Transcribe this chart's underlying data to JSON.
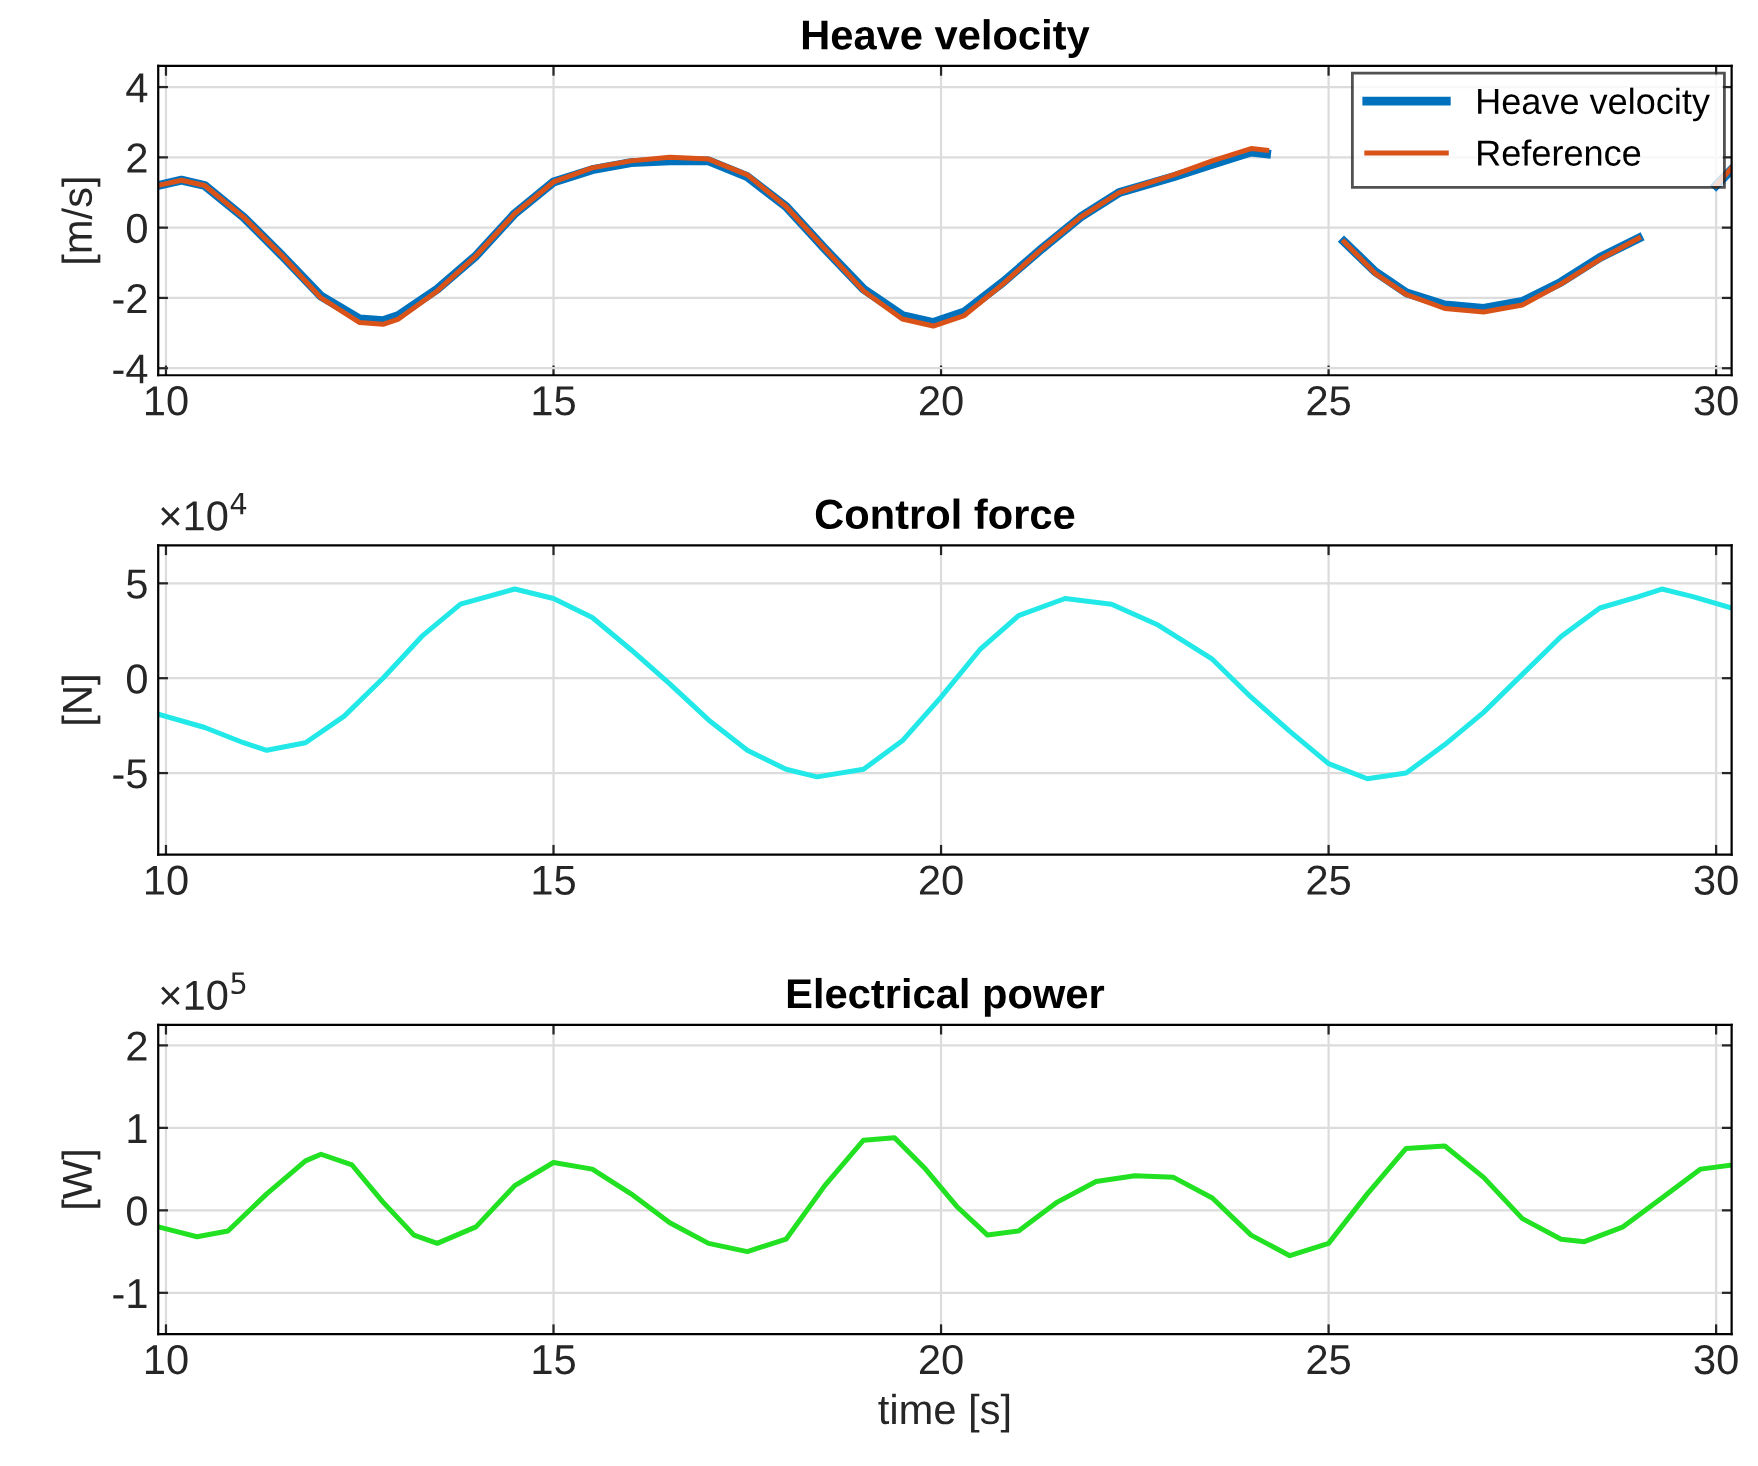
{
  "chart_data": [
    {
      "type": "line",
      "title": "Heave velocity",
      "ylabel": "[m/s]",
      "xlim": [
        9.9,
        30.2
      ],
      "ylim": [
        -4.2,
        4.6
      ],
      "xticks": [
        10,
        15,
        20,
        25,
        30
      ],
      "yticks": [
        -4,
        -2,
        0,
        2,
        4
      ],
      "grid": true,
      "legend": "top right",
      "series": [
        {
          "name": "Heave velocity",
          "color": "#0072bd",
          "x": [
            9.9,
            10.2,
            10.5,
            11,
            11.5,
            12,
            12.5,
            12.8,
            13,
            13.5,
            14,
            14.5,
            15,
            15.5,
            16,
            16.5,
            17,
            17.5,
            18,
            18.5,
            19,
            19.5,
            19.9,
            20.3,
            20.8,
            21.3,
            21.8,
            22.3,
            23,
            23.5,
            24,
            24.2,
            24.6,
            25.2,
            25.6,
            26,
            26.5,
            27,
            27.5,
            28,
            28.5,
            29,
            29.5,
            30,
            30.2
          ],
          "values": [
            1.2,
            1.35,
            1.2,
            0.3,
            -0.8,
            -1.95,
            -2.6,
            -2.65,
            -2.5,
            -1.75,
            -0.8,
            0.4,
            1.3,
            1.65,
            1.85,
            1.9,
            1.9,
            1.45,
            0.6,
            -0.6,
            -1.75,
            -2.5,
            -2.7,
            -2.4,
            -1.55,
            -0.6,
            0.3,
            1.0,
            1.45,
            1.8,
            2.15,
            2.1,
            null,
            -0.4,
            -1.25,
            -1.85,
            -2.2,
            -2.3,
            -2.1,
            -1.55,
            -0.85,
            -0.3,
            null,
            1.2,
            1.65
          ]
        },
        {
          "name": "Reference",
          "color": "#d95319",
          "x": [
            9.9,
            10.2,
            10.5,
            11,
            11.5,
            12,
            12.5,
            12.8,
            13,
            13.5,
            14,
            14.5,
            15,
            15.5,
            16,
            16.5,
            17,
            17.5,
            18,
            18.5,
            19,
            19.5,
            19.9,
            20.3,
            20.8,
            21.3,
            21.8,
            22.3,
            23,
            23.5,
            24,
            24.2,
            24.6,
            25.2,
            25.6,
            26,
            26.5,
            27,
            27.5,
            28,
            28.5,
            29,
            29.5,
            30,
            30.2
          ],
          "values": [
            1.2,
            1.35,
            1.2,
            0.3,
            -0.8,
            -2.0,
            -2.7,
            -2.75,
            -2.6,
            -1.8,
            -0.8,
            0.4,
            1.3,
            1.7,
            1.9,
            2.0,
            1.95,
            1.5,
            0.6,
            -0.6,
            -1.8,
            -2.6,
            -2.8,
            -2.5,
            -1.6,
            -0.6,
            0.3,
            1.0,
            1.5,
            1.9,
            2.25,
            2.2,
            null,
            -0.4,
            -1.3,
            -1.9,
            -2.3,
            -2.4,
            -2.2,
            -1.6,
            -0.9,
            -0.3,
            null,
            1.2,
            1.7
          ]
        }
      ]
    },
    {
      "type": "line",
      "title": "Control force",
      "ylabel": "[N]",
      "annotations": [
        "×10$^{4}$"
      ],
      "xlim": [
        9.9,
        30.2
      ],
      "ylim": [
        -9.3,
        7.0
      ],
      "xticks": [
        10,
        15,
        20,
        25,
        30
      ],
      "yticks": [
        -5,
        0,
        5
      ],
      "grid": true,
      "series": [
        {
          "color": "#22e8e8",
          "x": [
            9.9,
            10.5,
            11,
            11.3,
            11.8,
            12.3,
            12.8,
            13.3,
            13.8,
            14.5,
            15,
            15.5,
            16,
            16.5,
            17,
            17.5,
            18,
            18.4,
            19,
            19.5,
            20,
            20.5,
            21,
            21.6,
            22.2,
            22.8,
            23.5,
            24,
            24.5,
            25,
            25.5,
            26,
            26.5,
            27,
            27.5,
            28,
            28.5,
            29,
            29.3,
            29.7,
            30.2
          ],
          "values": [
            -1.9,
            -2.6,
            -3.4,
            -3.8,
            -3.4,
            -2.0,
            0,
            2.2,
            3.9,
            4.7,
            4.2,
            3.2,
            1.5,
            -0.3,
            -2.2,
            -3.8,
            -4.8,
            -5.2,
            -4.8,
            -3.3,
            -1.0,
            1.5,
            3.3,
            4.2,
            3.9,
            2.8,
            1.0,
            -1.0,
            -2.8,
            -4.5,
            -5.3,
            -5.0,
            -3.5,
            -1.8,
            0.2,
            2.2,
            3.7,
            4.3,
            4.7,
            4.3,
            3.7
          ]
        }
      ]
    },
    {
      "type": "line",
      "title": "Electrical power",
      "xlabel": "time [s]",
      "ylabel": "[W]",
      "annotations": [
        "×10$^{5}$"
      ],
      "xlim": [
        9.9,
        30.2
      ],
      "ylim": [
        -1.5,
        2.25
      ],
      "xticks": [
        10,
        15,
        20,
        25,
        30
      ],
      "yticks": [
        -1,
        0,
        1,
        2
      ],
      "grid": true,
      "series": [
        {
          "color": "#22e022",
          "x": [
            9.9,
            10.4,
            10.8,
            11.3,
            11.8,
            12,
            12.4,
            12.8,
            13.2,
            13.5,
            14,
            14.5,
            15,
            15.5,
            16,
            16.5,
            17,
            17.5,
            18,
            18.5,
            19,
            19.4,
            19.8,
            20.2,
            20.6,
            21,
            21.5,
            22,
            22.5,
            23,
            23.5,
            24,
            24.5,
            25,
            25.5,
            26,
            26.5,
            27,
            27.5,
            28,
            28.3,
            28.8,
            29.3,
            29.8,
            30.2
          ],
          "values": [
            -0.2,
            -0.32,
            -0.25,
            0.2,
            0.6,
            0.68,
            0.55,
            0.1,
            -0.3,
            -0.4,
            -0.2,
            0.3,
            0.58,
            0.5,
            0.2,
            -0.15,
            -0.4,
            -0.5,
            -0.35,
            0.3,
            0.85,
            0.88,
            0.5,
            0.05,
            -0.3,
            -0.25,
            0.1,
            0.35,
            0.42,
            0.4,
            0.15,
            -0.3,
            -0.55,
            -0.4,
            0.2,
            0.75,
            0.78,
            0.4,
            -0.1,
            -0.35,
            -0.38,
            -0.2,
            0.15,
            0.5,
            0.55
          ]
        }
      ]
    }
  ]
}
